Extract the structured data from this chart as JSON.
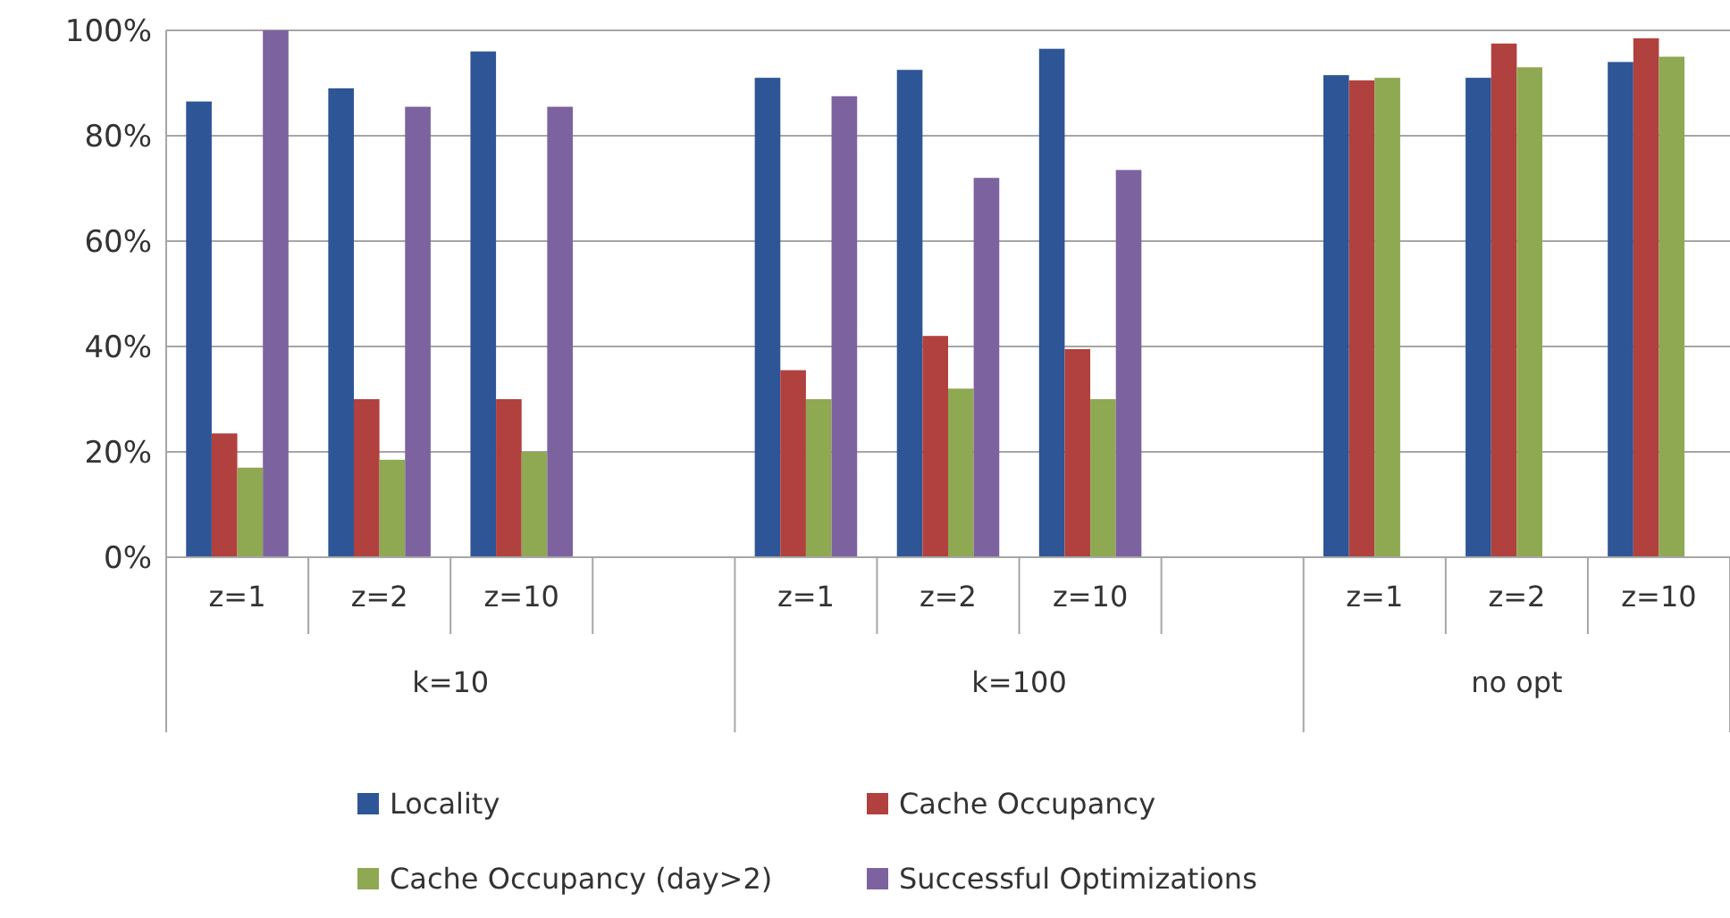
{
  "chart_data": {
    "type": "bar",
    "categories": [
      "z=1",
      "z=2",
      "z=10",
      null,
      "z=1",
      "z=2",
      "z=10",
      null,
      "z=1",
      "z=2",
      "z=10"
    ],
    "series": [
      {
        "name": "Locality",
        "color": "#2e5596",
        "values": [
          86.5,
          89,
          96,
          null,
          91,
          92.5,
          96.5,
          null,
          91.5,
          91,
          94
        ]
      },
      {
        "name": "Cache Occupancy",
        "color": "#b0413e",
        "values": [
          23.5,
          30,
          30,
          null,
          35.5,
          42,
          39.5,
          null,
          90.5,
          97.5,
          98.5
        ]
      },
      {
        "name": "Cache Occupancy (day>2)",
        "color": "#8fa852",
        "values": [
          17,
          18.5,
          20,
          null,
          30,
          32,
          30,
          null,
          91,
          93,
          95
        ]
      },
      {
        "name": "Successful Optimizations",
        "color": "#7d62a0",
        "values": [
          100,
          85.5,
          85.5,
          null,
          87.5,
          72,
          73.5,
          null,
          null,
          null,
          null
        ]
      }
    ],
    "ylim": [
      0,
      100
    ],
    "yticks": [
      {
        "value": 0,
        "label": "0%"
      },
      {
        "value": 20,
        "label": "20%"
      },
      {
        "value": 40,
        "label": "40%"
      },
      {
        "value": 60,
        "label": "60%"
      },
      {
        "value": 80,
        "label": "80%"
      },
      {
        "value": 100,
        "label": "100%"
      }
    ],
    "grid": "y",
    "legend": "bottom",
    "annotations": [
      "k=10",
      "k=100",
      "no opt"
    ]
  }
}
